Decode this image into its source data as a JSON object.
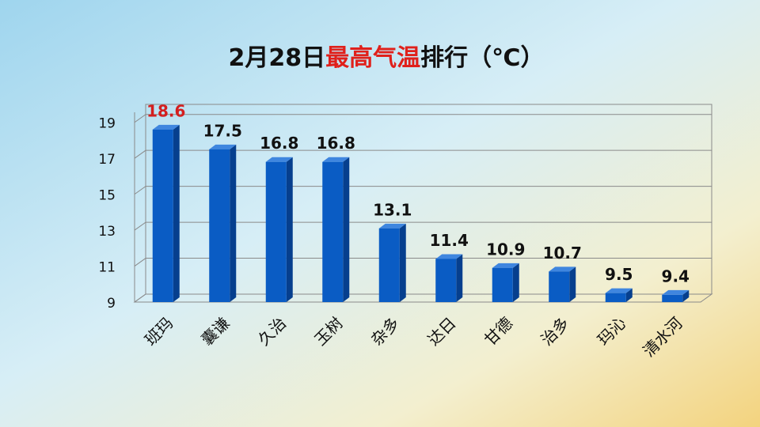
{
  "chart_data": {
    "type": "bar",
    "title": [
      "2月28日",
      "最高气温",
      "排行（℃）"
    ],
    "title_colors": [
      "#111111",
      "#e0201b",
      "#111111"
    ],
    "categories": [
      "班玛",
      "囊谦",
      "久治",
      "玉树",
      "杂多",
      "达日",
      "甘德",
      "治多",
      "玛沁",
      "清水河"
    ],
    "values": [
      18.6,
      17.5,
      16.8,
      16.8,
      13.1,
      11.4,
      10.9,
      10.7,
      9.5,
      9.4
    ],
    "color": "#0a5cc4",
    "label_colors": [
      "#d41f1f",
      "#111111",
      "#111111",
      "#111111",
      "#111111",
      "#111111",
      "#111111",
      "#111111",
      "#111111",
      "#111111"
    ],
    "ylim": [
      9,
      20
    ],
    "yticks": [
      9,
      11,
      13,
      15,
      17,
      19
    ],
    "grid": true
  }
}
